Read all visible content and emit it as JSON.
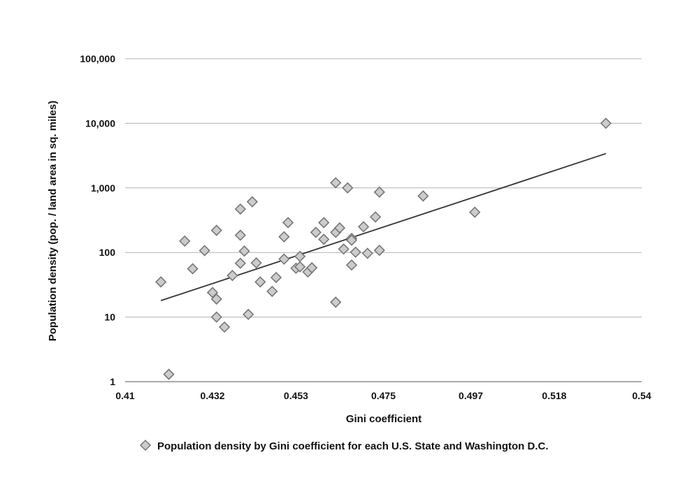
{
  "chart_data": {
    "type": "scatter",
    "title": "",
    "xlabel": "Gini coefficient",
    "ylabel": "Population density (pop. / land area in sq. miles)",
    "xlim": [
      0.41,
      0.54
    ],
    "ylim": [
      1,
      100000
    ],
    "yscale": "log",
    "x_ticks": [
      0.41,
      0.432,
      0.453,
      0.475,
      0.497,
      0.518,
      0.54
    ],
    "x_tick_labels": [
      "0.41",
      "0.432",
      "0.453",
      "0.475",
      "0.497",
      "0.518",
      "0.54"
    ],
    "y_ticks": [
      1,
      10,
      100,
      1000,
      10000,
      100000
    ],
    "y_tick_labels": [
      "1",
      "10",
      "100",
      "1,000",
      "10,000",
      "100,000"
    ],
    "grid": "horizontal",
    "legend_position": "bottom",
    "series": [
      {
        "name": "Population density by Gini coefficient for each U.S. State and Washington D.C.",
        "marker": "diamond",
        "color": "#cccccc",
        "edge_color": "#777777",
        "points": [
          [
            0.419,
            35
          ],
          [
            0.421,
            1.3
          ],
          [
            0.425,
            150
          ],
          [
            0.427,
            56
          ],
          [
            0.43,
            107
          ],
          [
            0.432,
            24
          ],
          [
            0.433,
            19
          ],
          [
            0.433,
            10
          ],
          [
            0.433,
            220
          ],
          [
            0.435,
            7
          ],
          [
            0.437,
            44
          ],
          [
            0.439,
            68
          ],
          [
            0.439,
            185
          ],
          [
            0.439,
            470
          ],
          [
            0.44,
            105
          ],
          [
            0.441,
            11
          ],
          [
            0.442,
            610
          ],
          [
            0.443,
            69
          ],
          [
            0.444,
            35
          ],
          [
            0.447,
            25
          ],
          [
            0.448,
            41
          ],
          [
            0.45,
            79
          ],
          [
            0.45,
            175
          ],
          [
            0.451,
            290
          ],
          [
            0.453,
            57
          ],
          [
            0.454,
            87
          ],
          [
            0.454,
            60
          ],
          [
            0.456,
            50
          ],
          [
            0.457,
            58
          ],
          [
            0.458,
            205
          ],
          [
            0.46,
            160
          ],
          [
            0.46,
            290
          ],
          [
            0.463,
            1200
          ],
          [
            0.463,
            17
          ],
          [
            0.463,
            205
          ],
          [
            0.464,
            240
          ],
          [
            0.465,
            113
          ],
          [
            0.466,
            1000
          ],
          [
            0.467,
            64
          ],
          [
            0.467,
            165
          ],
          [
            0.467,
            155
          ],
          [
            0.468,
            101
          ],
          [
            0.47,
            250
          ],
          [
            0.471,
            97
          ],
          [
            0.473,
            355
          ],
          [
            0.474,
            860
          ],
          [
            0.474,
            108
          ],
          [
            0.485,
            750
          ],
          [
            0.498,
            420
          ],
          [
            0.531,
            10000
          ]
        ]
      }
    ],
    "trendline": {
      "type": "exponential",
      "x_start": 0.419,
      "y_start": 18,
      "x_end": 0.531,
      "y_end": 3400,
      "color": "#333333"
    }
  }
}
